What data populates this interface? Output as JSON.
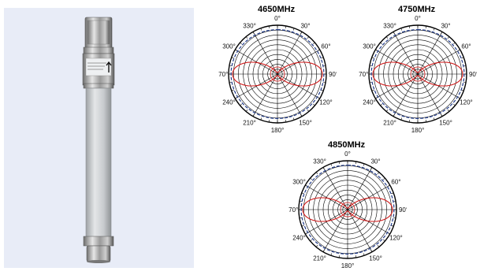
{
  "product": {
    "type": "omnidirectional-fiberglass-antenna",
    "radome_color": "#cfd2d4",
    "connector_color": "#9a9a9a",
    "background_color": "#e8ecf7"
  },
  "pattern_colors": {
    "h_plane": "#1f3a8a",
    "h_plane_style": "dashed",
    "e_plane": "#d11a1a",
    "grid": "#000000"
  },
  "angle_labels": [
    "0°",
    "30°",
    "60°",
    "90°",
    "120°",
    "150°",
    "180°",
    "210°",
    "240°",
    "270°",
    "300°",
    "330°"
  ],
  "plots": [
    {
      "title": "4650MHz"
    },
    {
      "title": "4750MHz"
    },
    {
      "title": "4850MHz"
    }
  ]
}
